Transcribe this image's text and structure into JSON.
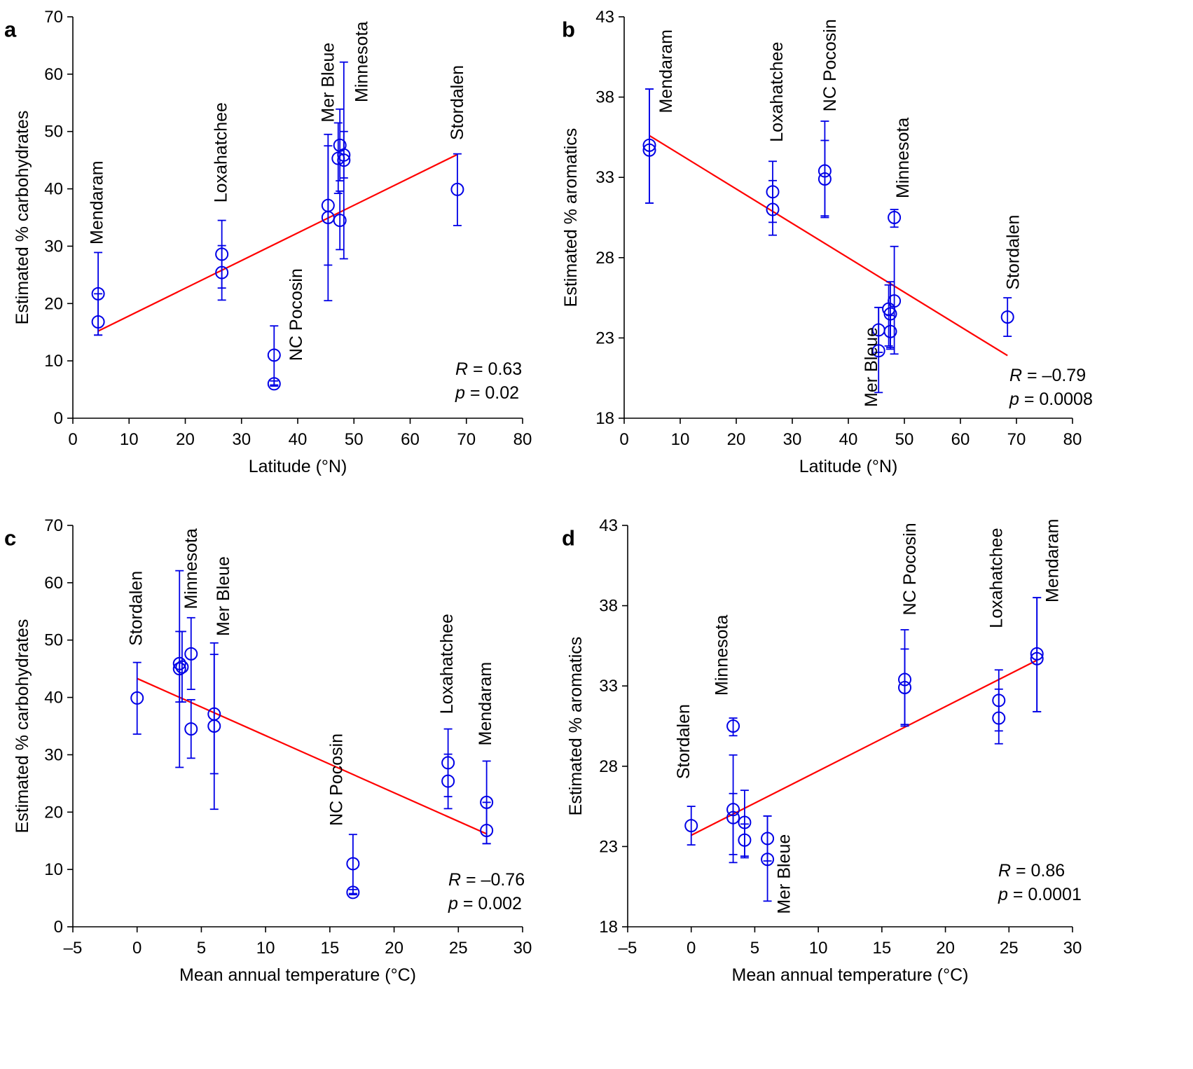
{
  "colors": {
    "points": "#0000e6",
    "fit_line": "#ff0000",
    "axes": "#000000"
  },
  "chart_data": [
    {
      "panel": "a",
      "type": "scatter",
      "xlabel": "Latitude (°N)",
      "ylabel": "Estimated % carbohydrates",
      "xlim": [
        0,
        80
      ],
      "ylim": [
        0,
        70
      ],
      "xticks": [
        0,
        10,
        20,
        30,
        40,
        50,
        60,
        70,
        80
      ],
      "yticks": [
        0,
        10,
        20,
        30,
        40,
        50,
        60,
        70
      ],
      "points": [
        {
          "x": 4.5,
          "y": 21.7,
          "lo": 14.5,
          "hi": 28.9
        },
        {
          "x": 4.5,
          "y": 16.8,
          "lo": 14.5,
          "hi": 21.7
        },
        {
          "x": 26.5,
          "y": 28.6,
          "lo": 22.7,
          "hi": 34.5
        },
        {
          "x": 26.5,
          "y": 25.4,
          "lo": 20.6,
          "hi": 30.1
        },
        {
          "x": 35.8,
          "y": 11.0,
          "lo": 5.8,
          "hi": 16.1
        },
        {
          "x": 35.8,
          "y": 6.0,
          "lo": 5.6,
          "hi": 6.5
        },
        {
          "x": 45.4,
          "y": 37.1,
          "lo": 26.7,
          "hi": 47.5
        },
        {
          "x": 45.4,
          "y": 35.0,
          "lo": 20.5,
          "hi": 49.5
        },
        {
          "x": 47.5,
          "y": 47.6,
          "lo": 41.4,
          "hi": 53.9
        },
        {
          "x": 47.5,
          "y": 34.5,
          "lo": 29.4,
          "hi": 39.6
        },
        {
          "x": 47.2,
          "y": 45.3,
          "lo": 39.2,
          "hi": 51.5
        },
        {
          "x": 48.2,
          "y": 45.9,
          "lo": 41.9,
          "hi": 50.0
        },
        {
          "x": 48.2,
          "y": 45.0,
          "lo": 27.8,
          "hi": 62.1
        },
        {
          "x": 68.4,
          "y": 39.9,
          "lo": 33.6,
          "hi": 46.1
        }
      ],
      "fit": {
        "x": [
          4.5,
          68.4
        ],
        "y": [
          15.2,
          46.0
        ]
      },
      "labels": [
        {
          "text": "Mendaram",
          "x": 4.5,
          "y": 30.3
        },
        {
          "text": "Loxahatchee",
          "x": 26.5,
          "y": 37.6
        },
        {
          "text": "NC Pocosin",
          "x": 39.9,
          "y": 10.0
        },
        {
          "text": "Mer Bleue",
          "x": 45.6,
          "y": 51.6
        },
        {
          "text": "Minnesota",
          "x": 51.6,
          "y": 55.1
        },
        {
          "text": "Stordalen",
          "x": 68.6,
          "y": 48.5
        }
      ],
      "stats": {
        "r_var": "R",
        "r_val": " = 0.63",
        "p_var": "p",
        "p_val": " = 0.02"
      }
    },
    {
      "panel": "b",
      "type": "scatter",
      "xlabel": "Latitude (°N)",
      "ylabel": "Estimated % aromatics",
      "xlim": [
        0,
        80
      ],
      "ylim": [
        18,
        43
      ],
      "xticks": [
        0,
        10,
        20,
        30,
        40,
        50,
        60,
        70,
        80
      ],
      "yticks": [
        18,
        23,
        28,
        33,
        38,
        43
      ],
      "points": [
        {
          "x": 4.5,
          "y": 35.0,
          "lo": 31.4,
          "hi": 38.5
        },
        {
          "x": 4.5,
          "y": 34.7,
          "lo": 31.4,
          "hi": 38.5
        },
        {
          "x": 26.5,
          "y": 32.1,
          "lo": 30.2,
          "hi": 34.0
        },
        {
          "x": 26.5,
          "y": 31.0,
          "lo": 29.4,
          "hi": 32.8
        },
        {
          "x": 35.8,
          "y": 33.4,
          "lo": 30.6,
          "hi": 36.5
        },
        {
          "x": 35.8,
          "y": 32.9,
          "lo": 30.5,
          "hi": 35.3
        },
        {
          "x": 45.4,
          "y": 23.5,
          "lo": 22.1,
          "hi": 24.9
        },
        {
          "x": 45.4,
          "y": 22.2,
          "lo": 19.6,
          "hi": 24.9
        },
        {
          "x": 47.2,
          "y": 24.8,
          "lo": 22.5,
          "hi": 26.3
        },
        {
          "x": 47.5,
          "y": 24.5,
          "lo": 22.4,
          "hi": 26.5
        },
        {
          "x": 47.5,
          "y": 23.4,
          "lo": 22.3,
          "hi": 24.4
        },
        {
          "x": 48.2,
          "y": 30.5,
          "lo": 29.9,
          "hi": 31.0
        },
        {
          "x": 48.2,
          "y": 25.3,
          "lo": 22.0,
          "hi": 28.7
        },
        {
          "x": 68.4,
          "y": 24.3,
          "lo": 23.1,
          "hi": 25.5
        }
      ],
      "fit": {
        "x": [
          4.5,
          68.4
        ],
        "y": [
          35.6,
          21.9
        ]
      },
      "labels": [
        {
          "text": "Mendaram",
          "x": 7.7,
          "y": 37.0
        },
        {
          "text": "Loxahatchee",
          "x": 27.4,
          "y": 35.2
        },
        {
          "text": "NC Pocosin",
          "x": 36.9,
          "y": 37.1
        },
        {
          "text": "Mer Bleue",
          "x": 44.3,
          "y": 18.7
        },
        {
          "text": "Minnesota",
          "x": 49.9,
          "y": 31.7
        },
        {
          "text": "Stordalen",
          "x": 69.6,
          "y": 26.0
        }
      ],
      "stats": {
        "r_var": "R",
        "r_val": " = –0.79",
        "p_var": "p",
        "p_val": " = 0.0008"
      }
    },
    {
      "panel": "c",
      "type": "scatter",
      "xlabel": "Mean annual temperature (°C)",
      "ylabel": "Estimated % carbohydrates",
      "xlim": [
        -5,
        30
      ],
      "ylim": [
        0,
        70
      ],
      "xticks": [
        -5,
        0,
        5,
        10,
        15,
        20,
        25,
        30
      ],
      "xticklabels": [
        "–5",
        "0",
        "5",
        "10",
        "15",
        "20",
        "25",
        "30"
      ],
      "yticks": [
        0,
        10,
        20,
        30,
        40,
        50,
        60,
        70
      ],
      "points": [
        {
          "x": 0.0,
          "y": 39.9,
          "lo": 33.6,
          "hi": 46.1
        },
        {
          "x": 3.3,
          "y": 45.9,
          "lo": 27.8,
          "hi": 62.1
        },
        {
          "x": 3.3,
          "y": 45.0,
          "lo": 39.2,
          "hi": 51.5
        },
        {
          "x": 3.5,
          "y": 45.3,
          "lo": 39.2,
          "hi": 51.5
        },
        {
          "x": 4.2,
          "y": 47.6,
          "lo": 41.4,
          "hi": 53.9
        },
        {
          "x": 4.2,
          "y": 34.5,
          "lo": 29.4,
          "hi": 39.6
        },
        {
          "x": 6.0,
          "y": 37.1,
          "lo": 26.7,
          "hi": 47.5
        },
        {
          "x": 6.0,
          "y": 35.0,
          "lo": 20.5,
          "hi": 49.5
        },
        {
          "x": 16.8,
          "y": 11.0,
          "lo": 5.8,
          "hi": 16.1
        },
        {
          "x": 16.8,
          "y": 6.0,
          "lo": 5.6,
          "hi": 6.5
        },
        {
          "x": 24.2,
          "y": 28.6,
          "lo": 22.7,
          "hi": 34.5
        },
        {
          "x": 24.2,
          "y": 25.4,
          "lo": 20.6,
          "hi": 30.1
        },
        {
          "x": 27.2,
          "y": 21.7,
          "lo": 14.5,
          "hi": 28.9
        },
        {
          "x": 27.2,
          "y": 16.8,
          "lo": 14.5,
          "hi": 21.7
        }
      ],
      "fit": {
        "x": [
          0.0,
          27.2
        ],
        "y": [
          43.3,
          16.2
        ]
      },
      "labels": [
        {
          "text": "Stordalen",
          "x": 0.0,
          "y": 49.0
        },
        {
          "text": "Minnesota",
          "x": 4.3,
          "y": 55.4
        },
        {
          "text": "Mer Bleue",
          "x": 6.8,
          "y": 50.7
        },
        {
          "text": "NC Pocosin",
          "x": 15.6,
          "y": 17.6
        },
        {
          "text": "Loxahatchee",
          "x": 24.2,
          "y": 37.1
        },
        {
          "text": "Mendaram",
          "x": 27.2,
          "y": 31.6
        }
      ],
      "stats": {
        "r_var": "R",
        "r_val": " = –0.76",
        "p_var": "p",
        "p_val": " = 0.002"
      }
    },
    {
      "panel": "d",
      "type": "scatter",
      "xlabel": "Mean annual temperature (°C)",
      "ylabel": "Estimated % aromatics",
      "xlim": [
        -5,
        30
      ],
      "ylim": [
        18,
        43
      ],
      "xticks": [
        -5,
        0,
        5,
        10,
        15,
        20,
        25,
        30
      ],
      "xticklabels": [
        "–5",
        "0",
        "5",
        "10",
        "15",
        "20",
        "25",
        "30"
      ],
      "yticks": [
        18,
        23,
        28,
        33,
        38,
        43
      ],
      "points": [
        {
          "x": 0.0,
          "y": 24.3,
          "lo": 23.1,
          "hi": 25.5
        },
        {
          "x": 3.3,
          "y": 25.3,
          "lo": 22.0,
          "hi": 28.7
        },
        {
          "x": 3.3,
          "y": 24.8,
          "lo": 22.5,
          "hi": 26.3
        },
        {
          "x": 3.3,
          "y": 30.5,
          "lo": 29.9,
          "hi": 31.0
        },
        {
          "x": 4.2,
          "y": 24.5,
          "lo": 22.4,
          "hi": 26.5
        },
        {
          "x": 4.2,
          "y": 23.4,
          "lo": 22.3,
          "hi": 24.4
        },
        {
          "x": 6.0,
          "y": 23.5,
          "lo": 22.1,
          "hi": 24.9
        },
        {
          "x": 6.0,
          "y": 22.2,
          "lo": 19.6,
          "hi": 24.9
        },
        {
          "x": 16.8,
          "y": 33.4,
          "lo": 30.6,
          "hi": 36.5
        },
        {
          "x": 16.8,
          "y": 32.9,
          "lo": 30.5,
          "hi": 35.3
        },
        {
          "x": 24.2,
          "y": 32.1,
          "lo": 30.2,
          "hi": 34.0
        },
        {
          "x": 24.2,
          "y": 31.0,
          "lo": 29.4,
          "hi": 32.8
        },
        {
          "x": 27.2,
          "y": 35.0,
          "lo": 31.4,
          "hi": 38.5
        },
        {
          "x": 27.2,
          "y": 34.7,
          "lo": 31.4,
          "hi": 38.5
        }
      ],
      "fit": {
        "x": [
          0.0,
          27.2
        ],
        "y": [
          23.7,
          34.6
        ]
      },
      "labels": [
        {
          "text": "Stordalen",
          "x": -0.5,
          "y": 27.2
        },
        {
          "text": "Minnesota",
          "x": 2.5,
          "y": 32.4
        },
        {
          "text": "Mer Bleue",
          "x": 7.4,
          "y": 18.8
        },
        {
          "text": "NC Pocosin",
          "x": 17.3,
          "y": 37.4
        },
        {
          "text": "Loxahatchee",
          "x": 24.1,
          "y": 36.6
        },
        {
          "text": "Mendaram",
          "x": 28.5,
          "y": 38.2
        }
      ],
      "stats": {
        "r_var": "R",
        "r_val": " = 0.86",
        "p_var": "p",
        "p_val": " = 0.0001"
      }
    }
  ]
}
